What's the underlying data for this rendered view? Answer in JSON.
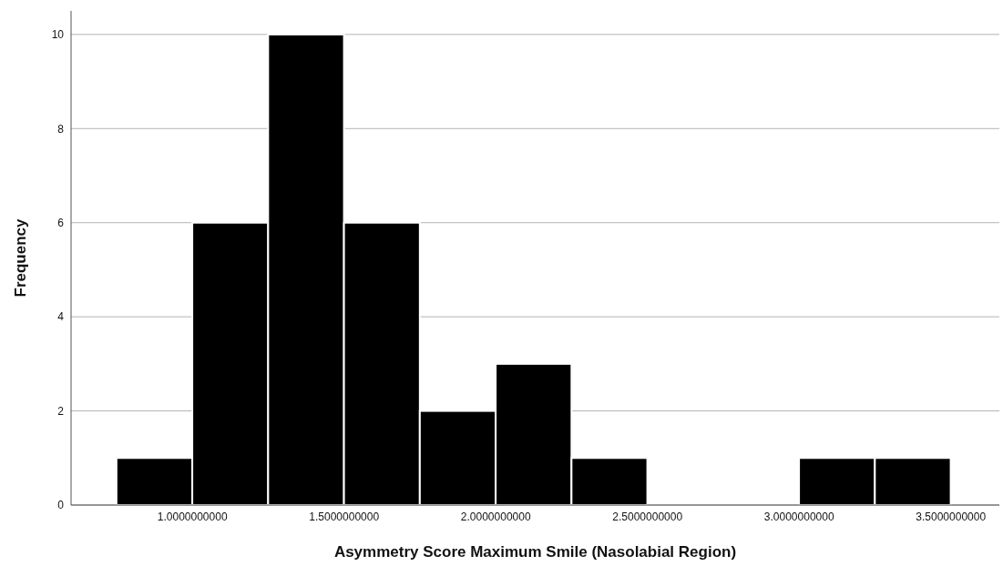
{
  "chart_data": {
    "type": "histogram",
    "xlabel": "Asymmetry Score Maximum Smile (Nasolabial Region)",
    "ylabel": "Frequency",
    "bins": [
      0.75,
      1.0,
      1.25,
      1.5,
      1.75,
      2.0,
      2.25,
      2.5,
      2.75,
      3.0,
      3.25,
      3.5
    ],
    "values": [
      1,
      6,
      10,
      6,
      2,
      3,
      1,
      0,
      0,
      1,
      1
    ],
    "color": "#000000",
    "xlim": [
      0.6,
      3.66
    ],
    "xticks": [
      {
        "value": 1.0,
        "label": "1.0000000000"
      },
      {
        "value": 1.5,
        "label": "1.5000000000"
      },
      {
        "value": 2.0,
        "label": "2.0000000000"
      },
      {
        "value": 2.5,
        "label": "2.5000000000"
      },
      {
        "value": 3.0,
        "label": "3.0000000000"
      },
      {
        "value": 3.5,
        "label": "3.5000000000"
      }
    ],
    "ylim": [
      0,
      10.5
    ],
    "yticks": [
      0,
      2,
      4,
      6,
      8,
      10
    ],
    "grid": "y"
  }
}
